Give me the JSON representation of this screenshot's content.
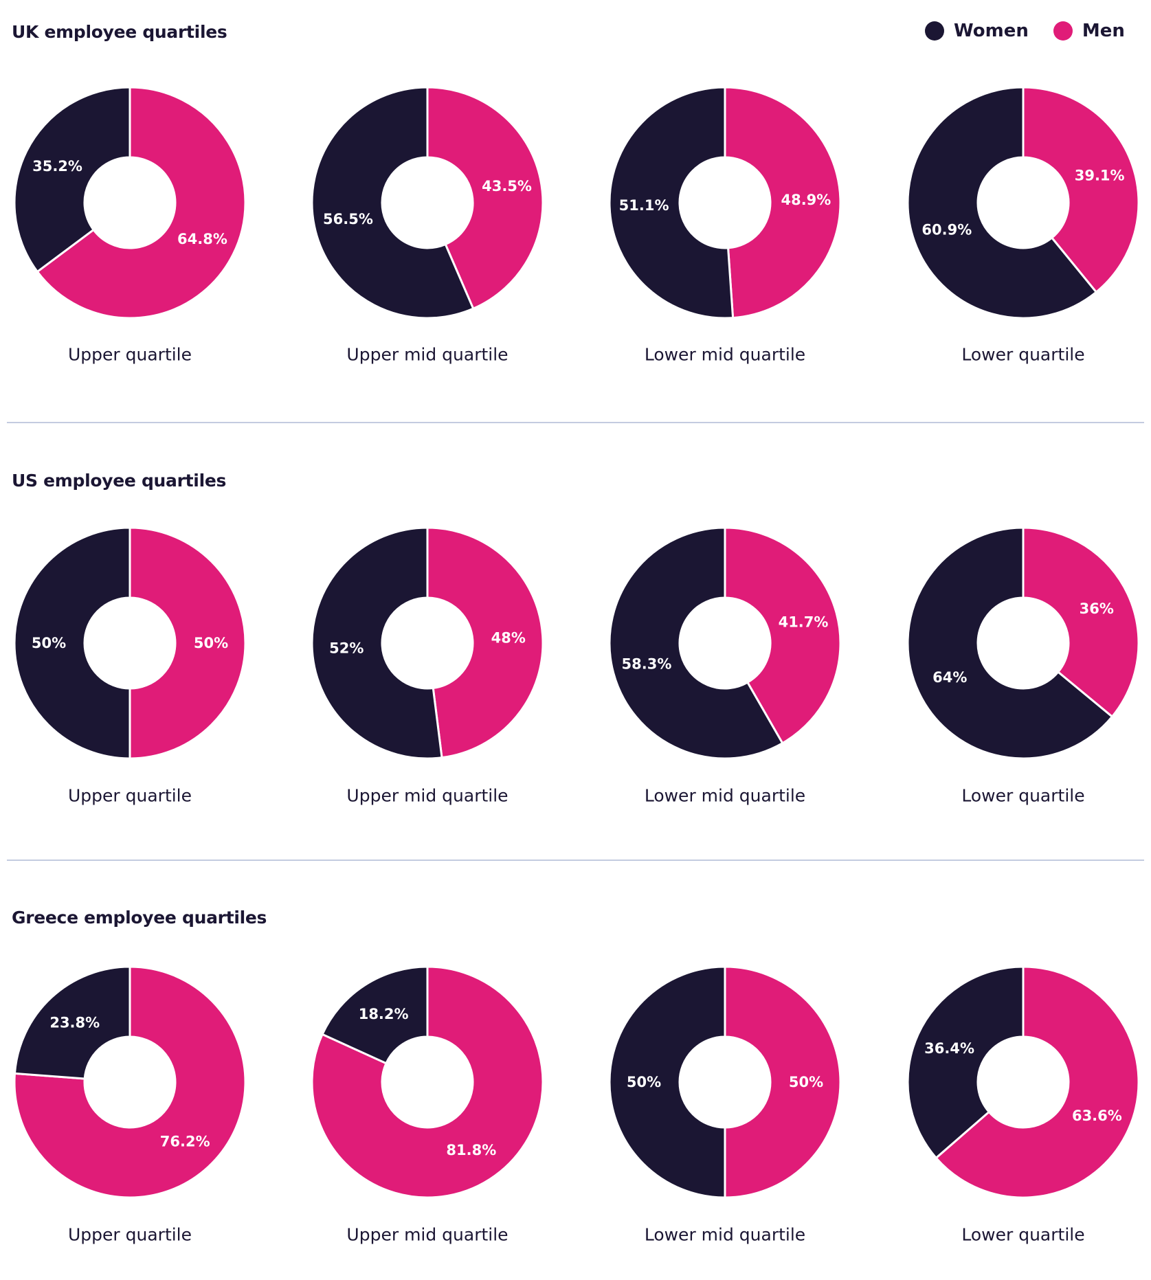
{
  "colors": {
    "women": "#1b1633",
    "men": "#e01c78",
    "divider": "#c3cbe0"
  },
  "legend": [
    {
      "label": "Women",
      "color": "#1b1633"
    },
    {
      "label": "Men",
      "color": "#e01c78"
    }
  ],
  "chart_data": [
    {
      "type": "pie",
      "title": "UK employee quartiles",
      "charts": [
        {
          "category": "Upper quartile",
          "women": 35.2,
          "men": 64.8,
          "women_label": "35.2%",
          "men_label": "64.8%"
        },
        {
          "category": "Upper mid quartile",
          "women": 56.5,
          "men": 43.5,
          "women_label": "56.5%",
          "men_label": "43.5%"
        },
        {
          "category": "Lower mid quartile",
          "women": 51.1,
          "men": 48.9,
          "women_label": "51.1%",
          "men_label": "48.9%"
        },
        {
          "category": "Lower quartile",
          "women": 60.9,
          "men": 39.1,
          "women_label": "60.9%",
          "men_label": "39.1%"
        }
      ]
    },
    {
      "type": "pie",
      "title": "US employee quartiles",
      "charts": [
        {
          "category": "Upper quartile",
          "women": 50,
          "men": 50,
          "women_label": "50%",
          "men_label": "50%"
        },
        {
          "category": "Upper mid quartile",
          "women": 52,
          "men": 48,
          "women_label": "52%",
          "men_label": "48%"
        },
        {
          "category": "Lower mid quartile",
          "women": 58.3,
          "men": 41.7,
          "women_label": "58.3%",
          "men_label": "41.7%"
        },
        {
          "category": "Lower quartile",
          "women": 64,
          "men": 36,
          "women_label": "64%",
          "men_label": "36%"
        }
      ]
    },
    {
      "type": "pie",
      "title": "Greece employee quartiles",
      "charts": [
        {
          "category": "Upper quartile",
          "women": 23.8,
          "men": 76.2,
          "women_label": "23.8%",
          "men_label": "76.2%"
        },
        {
          "category": "Upper mid quartile",
          "women": 18.2,
          "men": 81.8,
          "women_label": "18.2%",
          "men_label": "81.8%"
        },
        {
          "category": "Lower mid quartile",
          "women": 50,
          "men": 50,
          "women_label": "50%",
          "men_label": "50%"
        },
        {
          "category": "Lower quartile",
          "women": 36.4,
          "men": 63.6,
          "women_label": "36.4%",
          "men_label": "63.6%"
        }
      ]
    }
  ]
}
